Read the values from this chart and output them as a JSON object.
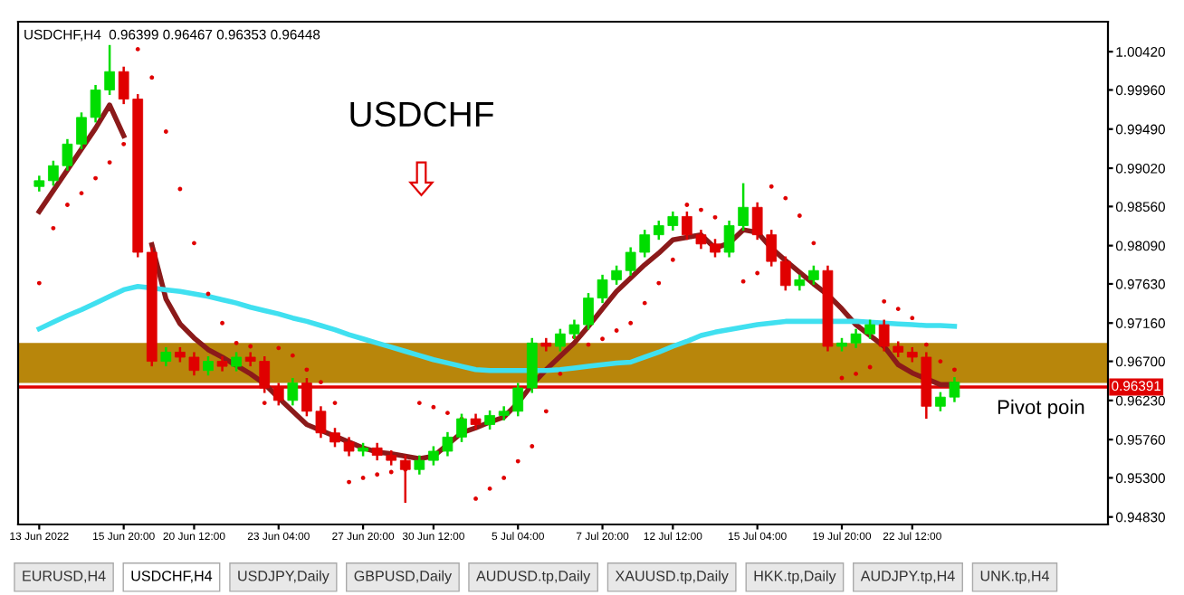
{
  "chart_data": {
    "type": "candlestick",
    "title": "USDCHF,H4  0.96399 0.96467 0.96353 0.96448",
    "categories": [
      "13 Jun 2022",
      null,
      null,
      null,
      null,
      null,
      "15 Jun 20:00",
      null,
      null,
      null,
      null,
      "20 Jun 12:00",
      null,
      null,
      null,
      null,
      null,
      "23 Jun 04:00",
      null,
      null,
      null,
      null,
      null,
      "27 Jun 20:00",
      null,
      null,
      null,
      null,
      "30 Jun 12:00",
      null,
      null,
      null,
      null,
      null,
      "5 Jul 04:00",
      null,
      null,
      null,
      null,
      null,
      "7 Jul 20:00",
      null,
      null,
      null,
      null,
      "12 Jul 12:00",
      null,
      null,
      null,
      null,
      null,
      "15 Jul 04:00",
      null,
      null,
      null,
      null,
      null,
      "19 Jul 20:00",
      null,
      null,
      null,
      null,
      "22 Jul 12:00",
      null,
      null,
      null
    ],
    "ohlc": [
      [
        0.988,
        0.9893,
        0.9874,
        0.9887
      ],
      [
        0.9887,
        0.9911,
        0.9881,
        0.9905
      ],
      [
        0.9905,
        0.9937,
        0.9899,
        0.9931
      ],
      [
        0.9931,
        0.9969,
        0.9925,
        0.9963
      ],
      [
        0.9963,
        1.0002,
        0.9957,
        0.9996
      ],
      [
        0.9996,
        1.005,
        0.999,
        1.0018
      ],
      [
        1.0018,
        1.0024,
        0.9979,
        0.9985
      ],
      [
        0.9985,
        0.9991,
        0.9795,
        0.9801
      ],
      [
        0.9801,
        0.9807,
        0.9664,
        0.967
      ],
      [
        0.967,
        0.9687,
        0.9664,
        0.9681
      ],
      [
        0.9681,
        0.9687,
        0.9669,
        0.9675
      ],
      [
        0.9675,
        0.9681,
        0.9653,
        0.9659
      ],
      [
        0.9659,
        0.9676,
        0.9653,
        0.967
      ],
      [
        0.967,
        0.9676,
        0.9658,
        0.9664
      ],
      [
        0.9664,
        0.9681,
        0.9658,
        0.9675
      ],
      [
        0.9675,
        0.9681,
        0.9664,
        0.967
      ],
      [
        0.967,
        0.9676,
        0.9632,
        0.9638
      ],
      [
        0.9638,
        0.9644,
        0.9617,
        0.9623
      ],
      [
        0.9623,
        0.965,
        0.9617,
        0.9644
      ],
      [
        0.9644,
        0.965,
        0.9604,
        0.961
      ],
      [
        0.961,
        0.9616,
        0.9578,
        0.9584
      ],
      [
        0.9584,
        0.959,
        0.9567,
        0.9573
      ],
      [
        0.9573,
        0.9579,
        0.9556,
        0.9562
      ],
      [
        0.9562,
        0.9572,
        0.9556,
        0.9566
      ],
      [
        0.9566,
        0.9572,
        0.9551,
        0.9557
      ],
      [
        0.9557,
        0.9563,
        0.9545,
        0.9551
      ],
      [
        0.9551,
        0.9557,
        0.95,
        0.954
      ],
      [
        0.954,
        0.9557,
        0.9534,
        0.9551
      ],
      [
        0.9551,
        0.9568,
        0.9545,
        0.9562
      ],
      [
        0.9562,
        0.9585,
        0.9556,
        0.9579
      ],
      [
        0.9579,
        0.9607,
        0.9573,
        0.9601
      ],
      [
        0.9601,
        0.9607,
        0.9588,
        0.9594
      ],
      [
        0.9594,
        0.9611,
        0.9588,
        0.9605
      ],
      [
        0.9605,
        0.9616,
        0.9599,
        0.961
      ],
      [
        0.961,
        0.9644,
        0.9604,
        0.9638
      ],
      [
        0.9638,
        0.9698,
        0.9632,
        0.9692
      ],
      [
        0.9692,
        0.9698,
        0.9682,
        0.9688
      ],
      [
        0.9688,
        0.9709,
        0.9682,
        0.9703
      ],
      [
        0.9703,
        0.972,
        0.9697,
        0.9714
      ],
      [
        0.9714,
        0.9752,
        0.9708,
        0.9746
      ],
      [
        0.9746,
        0.9774,
        0.974,
        0.9768
      ],
      [
        0.9768,
        0.9785,
        0.9762,
        0.9779
      ],
      [
        0.9779,
        0.9807,
        0.9773,
        0.9801
      ],
      [
        0.9801,
        0.9828,
        0.9795,
        0.9822
      ],
      [
        0.9822,
        0.9839,
        0.9816,
        0.9833
      ],
      [
        0.9833,
        0.985,
        0.9827,
        0.9844
      ],
      [
        0.9844,
        0.985,
        0.9816,
        0.9822
      ],
      [
        0.9822,
        0.9828,
        0.9805,
        0.9811
      ],
      [
        0.9811,
        0.9817,
        0.9795,
        0.9801
      ],
      [
        0.9801,
        0.9839,
        0.9795,
        0.9833
      ],
      [
        0.9833,
        0.9884,
        0.9827,
        0.9855
      ],
      [
        0.9855,
        0.9861,
        0.9816,
        0.9822
      ],
      [
        0.9822,
        0.9828,
        0.9784,
        0.979
      ],
      [
        0.979,
        0.9796,
        0.9755,
        0.9761
      ],
      [
        0.9761,
        0.9774,
        0.9755,
        0.9768
      ],
      [
        0.9768,
        0.9785,
        0.9762,
        0.9779
      ],
      [
        0.9779,
        0.9785,
        0.9682,
        0.9688
      ],
      [
        0.9688,
        0.9698,
        0.9682,
        0.9692
      ],
      [
        0.9692,
        0.9709,
        0.9686,
        0.9703
      ],
      [
        0.9703,
        0.972,
        0.9697,
        0.9714
      ],
      [
        0.9714,
        0.972,
        0.9682,
        0.9688
      ],
      [
        0.9688,
        0.9694,
        0.9675,
        0.9681
      ],
      [
        0.9681,
        0.9687,
        0.9669,
        0.9675
      ],
      [
        0.9675,
        0.9681,
        0.9601,
        0.9616
      ],
      [
        0.9616,
        0.9633,
        0.961,
        0.9627
      ],
      [
        0.9627,
        0.9651,
        0.9621,
        0.9645
      ]
    ],
    "series": [
      {
        "type": "line",
        "color": "#8b1a1a",
        "values": [
          0.985,
          0.9875,
          0.99,
          0.9925,
          0.995,
          0.9978,
          0.9941,
          null,
          0.981,
          0.9745,
          0.9715,
          0.9698,
          0.9684,
          0.9675,
          0.9665,
          0.9655,
          0.9643,
          0.9626,
          0.961,
          0.9594,
          0.9587,
          0.958,
          0.9573,
          0.9566,
          0.9561,
          0.9559,
          0.9556,
          0.9553,
          0.9556,
          0.957,
          0.9584,
          0.959,
          0.9597,
          0.9603,
          0.962,
          0.9642,
          0.966,
          0.9676,
          0.9692,
          0.9712,
          0.9733,
          0.9754,
          0.977,
          0.9786,
          0.98,
          0.9816,
          0.9819,
          0.9822,
          0.9806,
          0.9812,
          0.9828,
          0.9825,
          0.9806,
          0.9791,
          0.9777,
          0.9763,
          0.975,
          0.9733,
          0.9714,
          0.9701,
          0.9688,
          0.9666,
          0.9656,
          0.9649,
          0.9642,
          0.9642
        ]
      },
      {
        "type": "line",
        "color": "#40e0f0",
        "values": [
          0.9709,
          0.9717,
          0.9725,
          0.9732,
          0.974,
          0.9748,
          0.9756,
          0.976,
          0.9758,
          0.9756,
          0.9754,
          0.9751,
          0.9748,
          0.9744,
          0.974,
          0.9735,
          0.9731,
          0.9727,
          0.9722,
          0.9718,
          0.9713,
          0.9708,
          0.9702,
          0.9697,
          0.9692,
          0.9687,
          0.9682,
          0.9677,
          0.9672,
          0.9668,
          0.9664,
          0.966,
          0.9659,
          0.9659,
          0.9659,
          0.9659,
          0.9659,
          0.966,
          0.9662,
          0.9664,
          0.9666,
          0.9668,
          0.9669,
          0.9675,
          0.9681,
          0.9688,
          0.9694,
          0.9701,
          0.9705,
          0.9708,
          0.9711,
          0.9714,
          0.9716,
          0.9718,
          0.9718,
          0.9718,
          0.9718,
          0.9718,
          0.9718,
          0.9717,
          0.9716,
          0.9715,
          0.9714,
          0.9713,
          0.9713,
          0.9712
        ]
      },
      {
        "type": "scatter",
        "color": "#e00000",
        "values": [
          0.9764,
          0.983,
          0.9858,
          0.9872,
          0.989,
          0.9909,
          0.9931,
          1.0045,
          1.0011,
          0.9946,
          0.9877,
          0.9812,
          0.9751,
          0.9716,
          0.9692,
          0.9688,
          0.962,
          0.9686,
          0.9677,
          0.966,
          0.9645,
          0.962,
          0.9525,
          0.953,
          0.9534,
          0.9537,
          0.954,
          0.962,
          0.9615,
          0.9608,
          0.9601,
          0.9505,
          0.9517,
          0.953,
          0.955,
          0.9568,
          0.961,
          0.9655,
          0.9699,
          0.969,
          0.9697,
          0.9707,
          0.9716,
          0.974,
          0.9764,
          0.9792,
          0.9858,
          0.9852,
          0.9843,
          null,
          0.9766,
          0.9776,
          0.988,
          0.9866,
          0.9845,
          0.9812,
          null,
          0.965,
          0.9655,
          0.9663,
          0.9742,
          0.9733,
          0.9722,
          0.969,
          0.967,
          0.966
        ]
      }
    ],
    "ylim": [
      0.9474,
      1.0078
    ],
    "yticks": [
      {
        "value": 1.0042,
        "label": "1.00420"
      },
      {
        "value": 0.9996,
        "label": "0.99960"
      },
      {
        "value": 0.9949,
        "label": "0.99490"
      },
      {
        "value": 0.9902,
        "label": "0.99020"
      },
      {
        "value": 0.9856,
        "label": "0.98560"
      },
      {
        "value": 0.9809,
        "label": "0.98090"
      },
      {
        "value": 0.9763,
        "label": "0.97630"
      },
      {
        "value": 0.9716,
        "label": "0.97160"
      },
      {
        "value": 0.967,
        "label": "0.96700"
      },
      {
        "value": 0.9623,
        "label": "0.96230"
      },
      {
        "value": 0.9576,
        "label": "0.95760"
      },
      {
        "value": 0.953,
        "label": "0.95300"
      },
      {
        "value": 0.9483,
        "label": "0.94830"
      }
    ],
    "bands": [
      {
        "axis": "y",
        "from": 0.9644,
        "to": 0.9692,
        "color": "#b8860b"
      }
    ],
    "ref_lines": [
      {
        "axis": "y",
        "value": 0.96391,
        "label": "0.96391",
        "color": "#e00000"
      }
    ],
    "annotations": [
      "USDCHF",
      "Pivot poin",
      "EURUSD,H4",
      "USDCHF,H4",
      "USDJPY,Daily",
      "GBPUSD,Daily",
      "AUDUSD.tp,Daily",
      "XAUUSD.tp,Daily",
      "HKK.tp,Daily",
      "AUDJPY.tp,H4",
      "UNK.tp,H4"
    ],
    "grid": false,
    "legend": false
  }
}
